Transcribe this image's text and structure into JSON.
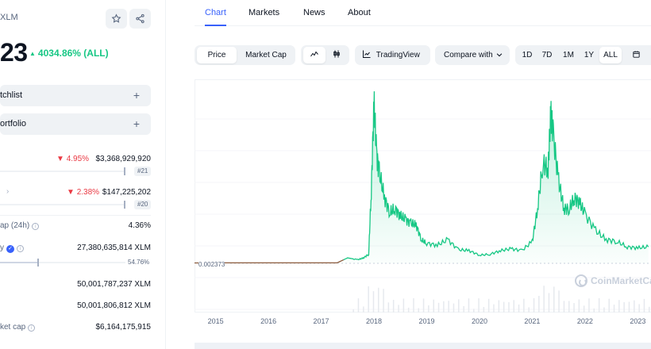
{
  "coin": {
    "symbol": "XLM",
    "price_fragment": "23",
    "change": "4034.86% (ALL)"
  },
  "actions": {
    "watchlist": "tchlist",
    "portfolio": "ortfolio",
    "plus": "+"
  },
  "stats": {
    "market_cap": {
      "change": "4.95%",
      "value": "$3,368,929,920",
      "rank": "#21"
    },
    "volume": {
      "change": "2.38%",
      "value": "$147,225,202",
      "rank": "#20"
    },
    "vol_mcap": {
      "label": "ap (24h)",
      "value": "4.36%"
    },
    "circulating": {
      "label": "y",
      "value": "27,380,635,814 XLM",
      "percent": "54.76%",
      "fill_fraction": 0.5476
    },
    "total_supply": {
      "value": "50,001,787,237 XLM"
    },
    "max_supply": {
      "value": "50,001,806,812 XLM"
    },
    "fdmc": {
      "label": "ket cap",
      "value": "$6,164,175,915"
    }
  },
  "tabs": [
    "Chart",
    "Markets",
    "News",
    "About"
  ],
  "active_tab": "Chart",
  "toolbar": {
    "price": "Price",
    "market_cap": "Market Cap",
    "tradingview": "TradingView",
    "compare": "Compare with",
    "ranges": [
      "1D",
      "7D",
      "1M",
      "1Y",
      "ALL"
    ],
    "active_range": "ALL"
  },
  "chart": {
    "base_label": "0.002373",
    "watermark": "CoinMarketCap",
    "accent": "#16c784",
    "x_ticks": [
      "2015",
      "2016",
      "2017",
      "2018",
      "2019",
      "2020",
      "2021",
      "2022",
      "2023"
    ]
  },
  "chart_data": {
    "type": "area",
    "x": [
      2014.6,
      2015.0,
      2015.5,
      2016.0,
      2016.5,
      2017.0,
      2017.3,
      2017.5,
      2017.7,
      2017.8,
      2017.9,
      2017.95,
      2018.0,
      2018.05,
      2018.1,
      2018.2,
      2018.3,
      2018.4,
      2018.5,
      2018.6,
      2018.7,
      2018.8,
      2018.9,
      2019.0,
      2019.2,
      2019.4,
      2019.6,
      2019.8,
      2020.0,
      2020.2,
      2020.4,
      2020.6,
      2020.8,
      2021.0,
      2021.1,
      2021.2,
      2021.3,
      2021.35,
      2021.4,
      2021.5,
      2021.6,
      2021.7,
      2021.8,
      2021.9,
      2022.0,
      2022.2,
      2022.4,
      2022.6,
      2022.8,
      2023.0,
      2023.2
    ],
    "y": [
      0.002373,
      0.0024,
      0.0024,
      0.0024,
      0.0024,
      0.0024,
      0.0024,
      0.03,
      0.02,
      0.03,
      0.05,
      0.4,
      0.88,
      0.6,
      0.5,
      0.36,
      0.28,
      0.3,
      0.26,
      0.24,
      0.22,
      0.21,
      0.13,
      0.11,
      0.1,
      0.13,
      0.075,
      0.07,
      0.045,
      0.05,
      0.07,
      0.08,
      0.07,
      0.12,
      0.3,
      0.55,
      0.52,
      0.82,
      0.7,
      0.45,
      0.3,
      0.3,
      0.36,
      0.33,
      0.27,
      0.18,
      0.13,
      0.12,
      0.09,
      0.085,
      0.09
    ],
    "ylabel": "",
    "xlabel": "",
    "grid": true
  }
}
